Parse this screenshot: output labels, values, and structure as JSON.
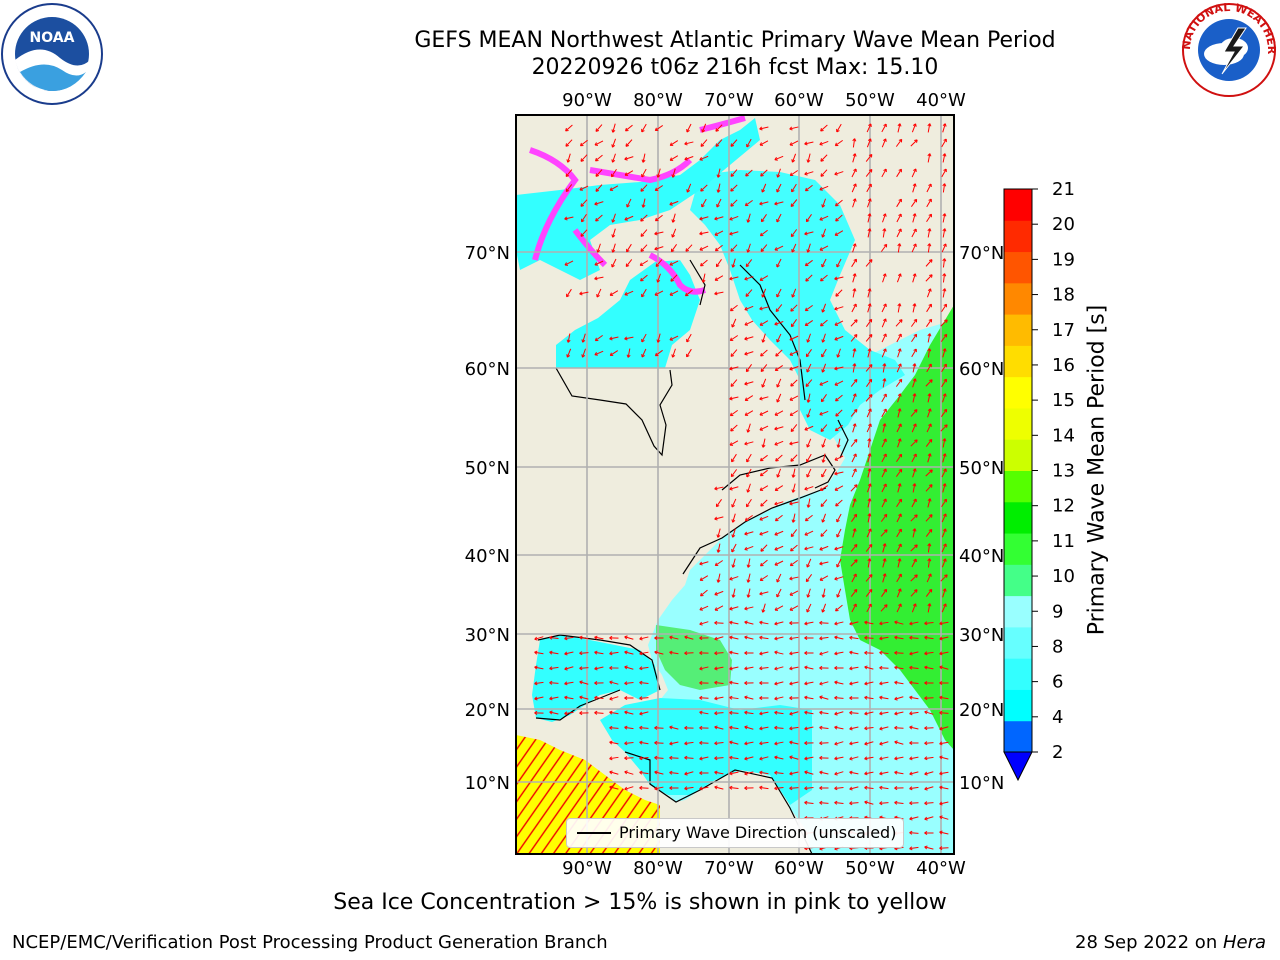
{
  "title": {
    "line1": "GEFS MEAN Northwest Atlantic Primary Wave Mean Period",
    "line2": "20220926 t06z 216h fcst   Max: 15.10"
  },
  "map": {
    "lon_labels": [
      "90°W",
      "80°W",
      "70°W",
      "60°W",
      "50°W",
      "40°W"
    ],
    "lat_labels": [
      "70°N",
      "60°N",
      "50°N",
      "40°N",
      "30°N",
      "20°N",
      "10°N"
    ],
    "legend_label": "Primary Wave Direction (unscaled)",
    "colors": {
      "land": "#efedde",
      "grid": "#b0b0b0",
      "arrow": "#ff0000",
      "sea_ice": "#ff44ff"
    }
  },
  "colorbar": {
    "label": "Primary Wave Mean Period [s]",
    "ticks": [
      "2",
      "4",
      "6",
      "8",
      "9",
      "10",
      "11",
      "12",
      "13",
      "14",
      "15",
      "16",
      "17",
      "18",
      "19",
      "20",
      "21"
    ],
    "colors": [
      "#0066ff",
      "#00ffff",
      "#33ffff",
      "#66ffff",
      "#99ffff",
      "#44ff88",
      "#33ff33",
      "#00ee00",
      "#55ff00",
      "#ccff00",
      "#eeff00",
      "#ffff00",
      "#ffdd00",
      "#ffbb00",
      "#ff8800",
      "#ff5500",
      "#ff2a00",
      "#ff0000"
    ],
    "under_color": "#0000ff"
  },
  "notes": {
    "sea_ice": "Sea Ice Concentration > 15% is shown in pink to yellow"
  },
  "footer": {
    "left": "NCEP/EMC/Verification Post Processing Product Generation Branch",
    "right_date": "28 Sep 2022 on ",
    "right_machine": "Hera"
  },
  "logos": {
    "noaa": "NOAA",
    "nws": "NATIONAL WEATHER SERVICE"
  }
}
